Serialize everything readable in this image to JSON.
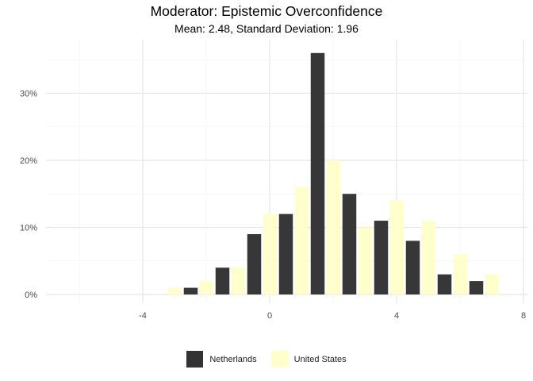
{
  "chart_data": {
    "type": "bar",
    "title": "Moderator: Epistemic Overconfidence",
    "subtitle": "Mean: 2.48, Standard Deviation: 1.96",
    "xlabel": "",
    "ylabel": "",
    "xlim": [
      -7,
      8
    ],
    "ylim": [
      0,
      36
    ],
    "x_ticks": [
      {
        "value": -4,
        "label": "-4"
      },
      {
        "value": 0,
        "label": "0"
      },
      {
        "value": 4,
        "label": "4"
      },
      {
        "value": 8,
        "label": "8"
      }
    ],
    "y_ticks": [
      {
        "value": 0,
        "label": "0%"
      },
      {
        "value": 10,
        "label": "10%"
      },
      {
        "value": 20,
        "label": "20%"
      },
      {
        "value": 30,
        "label": "30%"
      }
    ],
    "grid": true,
    "legend_position": "bottom",
    "series": [
      {
        "name": "Netherlands",
        "color": "#333333",
        "x": [
          -3,
          -2,
          -1,
          0,
          1,
          2,
          3,
          4,
          5,
          6,
          7
        ],
        "values": [
          0,
          1,
          4,
          9,
          12,
          36,
          15,
          11,
          8,
          3,
          2
        ]
      },
      {
        "name": "United States",
        "color": "#ffffcc",
        "x": [
          -3,
          -2,
          -1,
          0,
          1,
          2,
          3,
          4,
          5,
          6,
          7
        ],
        "values": [
          1,
          2,
          4,
          12,
          16,
          20,
          10,
          14,
          11,
          6,
          3
        ]
      }
    ]
  }
}
